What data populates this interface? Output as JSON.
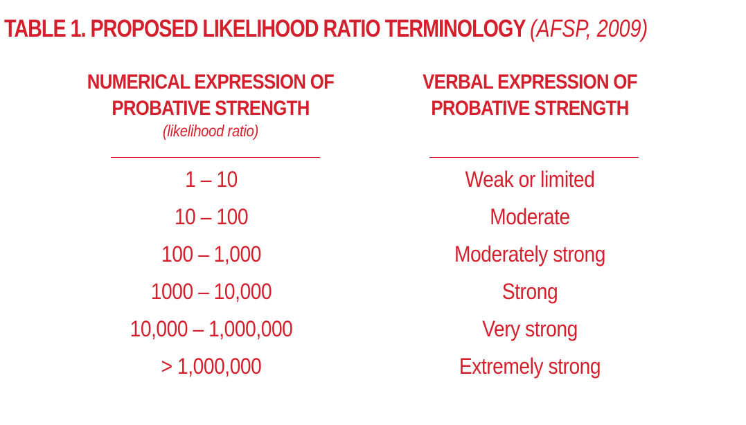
{
  "title": {
    "main": "TABLE 1. PROPOSED LIKELIHOOD RATIO TERMINOLOGY",
    "citation": "(AFSP, 2009)"
  },
  "columns": {
    "numerical": {
      "header_line1": "NUMERICAL EXPRESSION OF",
      "header_line2": "PROBATIVE STRENGTH",
      "subheader": "(likelihood ratio)"
    },
    "verbal": {
      "header_line1": "VERBAL EXPRESSION OF",
      "header_line2": "PROBATIVE STRENGTH"
    }
  },
  "rows": [
    {
      "numerical": "1 – 10",
      "verbal": "Weak or limited"
    },
    {
      "numerical": "10 – 100",
      "verbal": "Moderate"
    },
    {
      "numerical": "100 – 1,000",
      "verbal": "Moderately strong"
    },
    {
      "numerical": "1000 – 10,000",
      "verbal": "Strong"
    },
    {
      "numerical": "10,000 – 1,000,000",
      "verbal": "Very strong"
    },
    {
      "numerical": "> 1,000,000",
      "verbal": "Extremely strong"
    }
  ],
  "colors": {
    "text": "#d4202c",
    "background": "#ffffff"
  }
}
